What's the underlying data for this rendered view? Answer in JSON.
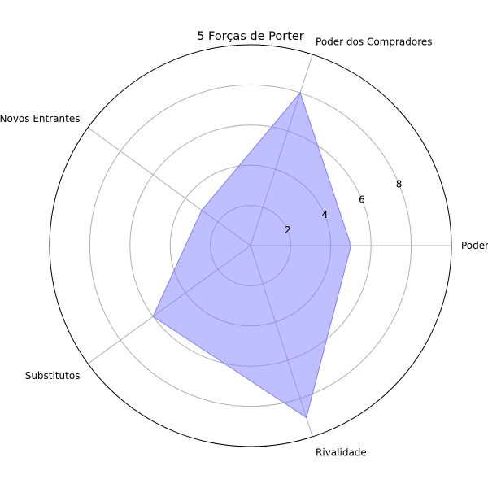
{
  "chart_data": {
    "type": "radar",
    "title": "5 Forças de Porter",
    "categories": [
      "Poder dos Fornecedores",
      "Poder dos Compradores",
      "Novos Entrantes",
      "Substitutos",
      "Rivalidade"
    ],
    "series": [
      {
        "values": [
          5,
          8,
          3,
          6,
          9
        ]
      }
    ],
    "r_ticks": [
      2,
      4,
      6,
      8
    ],
    "rlim": [
      0,
      10
    ],
    "grid": true,
    "fill_color": "#8080ff",
    "fill_opacity": 0.5,
    "edge_color": "#8080ff",
    "grid_color": "#b0b0b0",
    "frame_color": "#000000"
  }
}
